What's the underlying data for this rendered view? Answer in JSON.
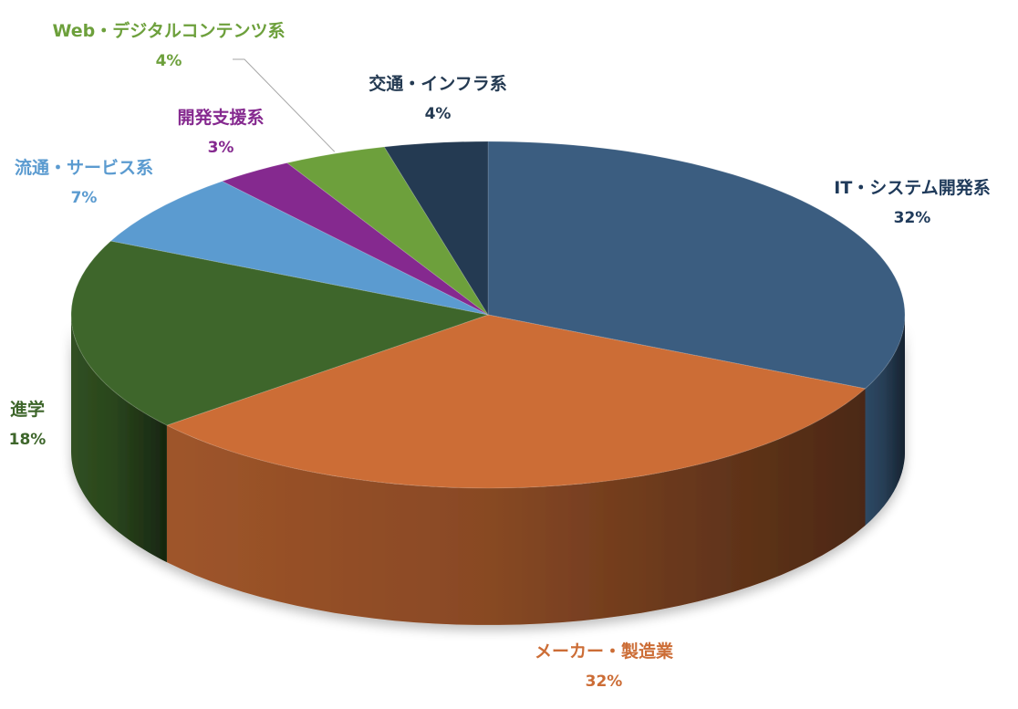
{
  "chart_data": {
    "type": "pie",
    "style": "3d",
    "title": "",
    "slices": [
      {
        "label": "IT・システム開発系",
        "pct_label": "32%",
        "value": 32,
        "color": "#3b5d80",
        "label_color": "#1f3a5a"
      },
      {
        "label": "メーカー・製造業",
        "pct_label": "32%",
        "value": 32,
        "color": "#cc6d36",
        "label_color": "#cc6d36"
      },
      {
        "label": "進学",
        "pct_label": "18%",
        "value": 18,
        "color": "#3e662b",
        "label_color": "#3e662b"
      },
      {
        "label": "流通・サービス系",
        "pct_label": "7%",
        "value": 7,
        "color": "#5b9bd0",
        "label_color": "#5b9bd0"
      },
      {
        "label": "開発支援系",
        "pct_label": "3%",
        "value": 3,
        "color": "#85298f",
        "label_color": "#85298f"
      },
      {
        "label": "Web・デジタルコンテンツ系",
        "pct_label": "4%",
        "value": 4,
        "color": "#6da03c",
        "label_color": "#6da03c"
      },
      {
        "label": "交通・インフラ系",
        "pct_label": "4%",
        "value": 4,
        "color": "#243a52",
        "label_color": "#243a52"
      }
    ]
  }
}
